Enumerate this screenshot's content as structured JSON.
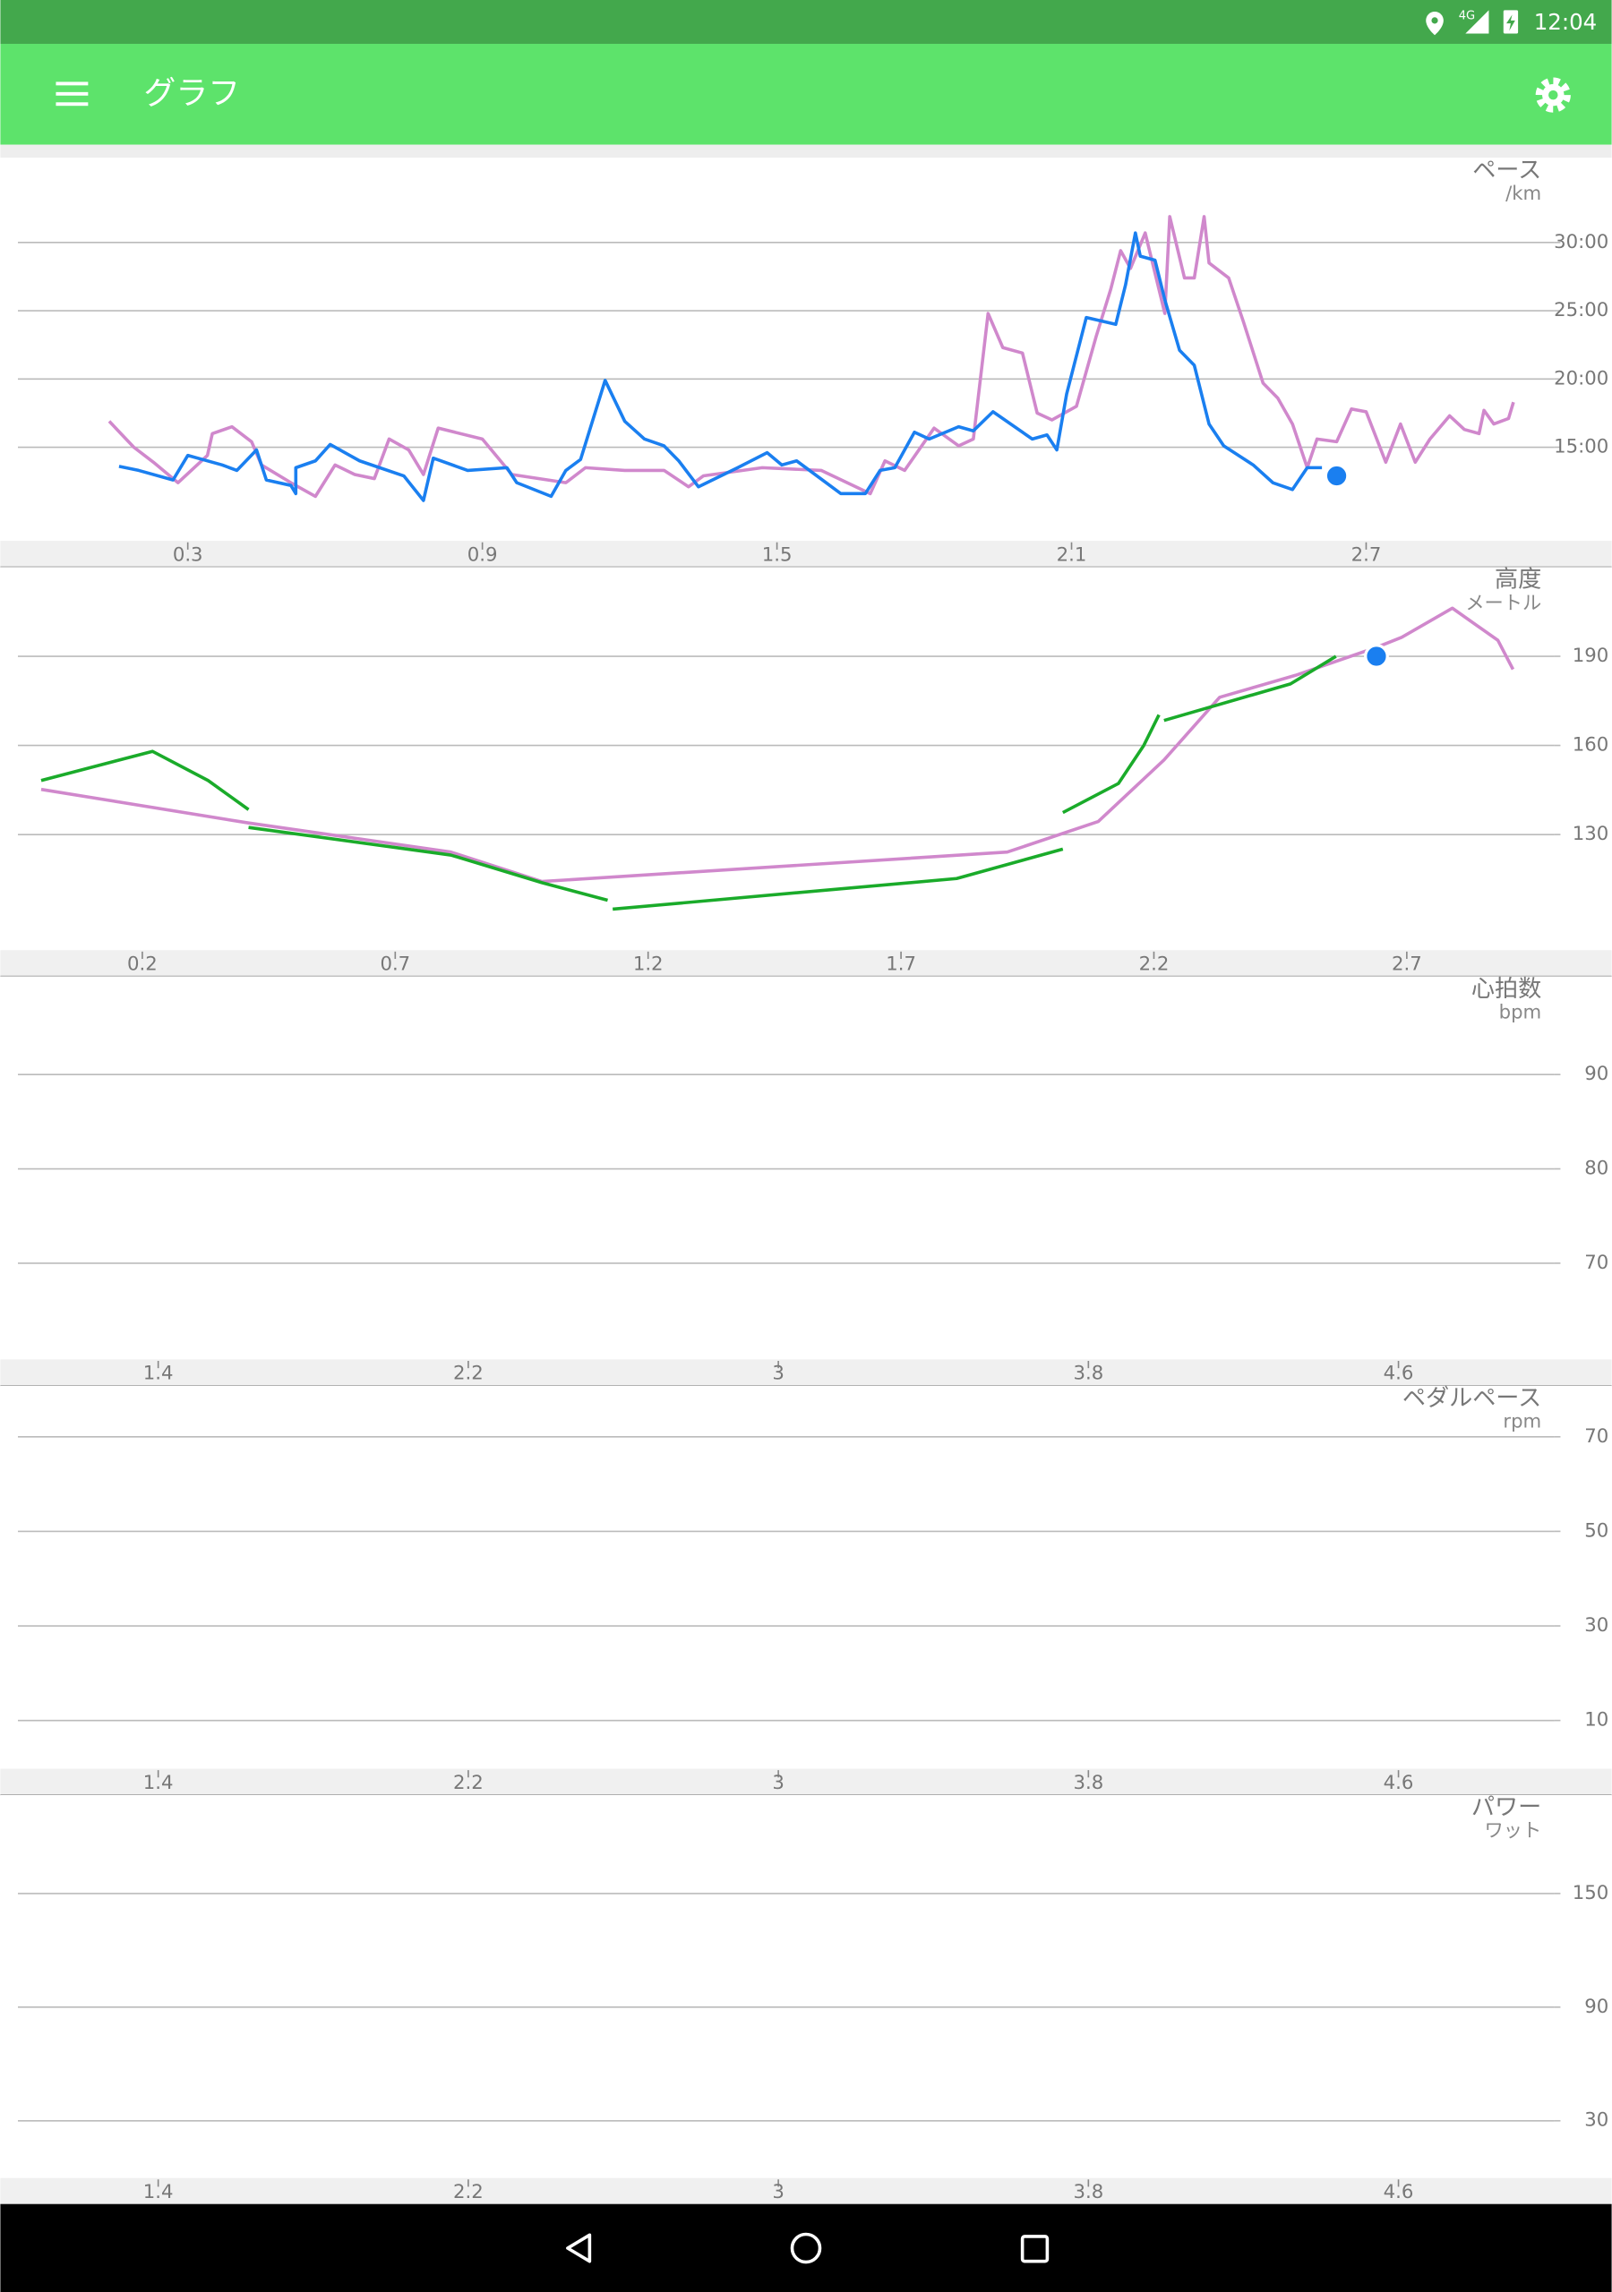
{
  "status_bar": {
    "time": "12:04",
    "network": "4G"
  },
  "app_bar": {
    "title": "グラフ"
  },
  "chart_data": [
    {
      "type": "line",
      "title": "ペース",
      "unit": "/km",
      "grid": true,
      "xlim": [
        -0.046,
        3.2
      ],
      "xticks": [
        0.3,
        0.9,
        1.5,
        2.1,
        2.7
      ],
      "ylim": [
        8.14,
        36.2
      ],
      "yticks": [
        {
          "value": 15,
          "label": "15:00"
        },
        {
          "value": 20,
          "label": "20:00"
        },
        {
          "value": 25,
          "label": "25:00"
        },
        {
          "value": 30,
          "label": "30:00"
        }
      ],
      "series": [
        {
          "color": "#d088cc",
          "x": [
            0.14,
            0.19,
            0.23,
            0.28,
            0.34,
            0.35,
            0.39,
            0.43,
            0.45,
            0.51,
            0.56,
            0.6,
            0.64,
            0.68,
            0.71,
            0.75,
            0.78,
            0.81,
            0.9,
            0.96,
            1.07,
            1.11,
            1.19,
            1.27,
            1.32,
            1.35,
            1.47,
            1.59,
            1.69,
            1.72,
            1.76,
            1.82,
            1.87,
            1.9,
            1.93,
            1.96,
            2.0,
            2.03,
            2.06,
            2.11,
            2.15,
            2.18,
            2.2,
            2.22,
            2.25,
            2.29,
            2.3,
            2.33,
            2.35,
            2.37,
            2.38,
            2.42,
            2.45,
            2.49,
            2.52,
            2.55,
            2.58,
            2.6,
            2.64,
            2.67,
            2.7,
            2.74,
            2.77,
            2.8,
            2.83,
            2.87,
            2.9,
            2.93,
            2.94,
            2.96,
            2.99,
            3.0
          ],
          "values": [
            16.9,
            15.0,
            13.9,
            12.4,
            14.4,
            16.0,
            16.5,
            15.4,
            13.7,
            12.4,
            11.4,
            13.7,
            13.0,
            12.7,
            15.6,
            14.8,
            13.0,
            16.4,
            15.6,
            13.0,
            12.4,
            13.5,
            13.3,
            13.3,
            12.1,
            12.9,
            13.5,
            13.3,
            11.6,
            14.0,
            13.3,
            16.4,
            15.1,
            15.6,
            24.8,
            22.3,
            21.9,
            17.5,
            17.0,
            18.0,
            23.1,
            26.6,
            29.4,
            28.1,
            30.7,
            24.8,
            31.9,
            27.4,
            27.4,
            31.9,
            28.5,
            27.4,
            24.2,
            19.7,
            18.6,
            16.7,
            13.5,
            15.6,
            15.4,
            17.8,
            17.6,
            13.9,
            16.7,
            13.9,
            15.6,
            17.3,
            16.3,
            16.0,
            17.7,
            16.7,
            17.1,
            18.3
          ]
        },
        {
          "color": "#1a7ff0",
          "x": [
            0.16,
            0.2,
            0.27,
            0.3,
            0.37,
            0.4,
            0.44,
            0.46,
            0.51,
            0.52,
            0.52,
            0.56,
            0.59,
            0.65,
            0.74,
            0.78,
            0.8,
            0.87,
            0.95,
            0.97,
            1.04,
            1.07,
            1.1,
            1.15,
            1.19,
            1.23,
            1.27,
            1.3,
            1.34,
            1.42,
            1.48,
            1.51,
            1.54,
            1.63,
            1.68,
            1.71,
            1.74,
            1.78,
            1.81,
            1.87,
            1.9,
            1.94,
            2.02,
            2.05,
            2.07,
            2.09,
            2.13,
            2.19,
            2.21,
            2.23,
            2.24,
            2.27,
            2.29,
            2.32,
            2.35,
            2.38,
            2.41,
            2.47,
            2.51,
            2.55,
            2.58,
            2.61
          ],
          "values": [
            13.6,
            13.3,
            12.6,
            14.4,
            13.7,
            13.3,
            14.8,
            12.6,
            12.2,
            11.6,
            13.5,
            14.0,
            15.2,
            14.0,
            12.9,
            11.1,
            14.2,
            13.3,
            13.5,
            12.4,
            11.4,
            13.3,
            14.1,
            19.9,
            16.9,
            15.6,
            15.1,
            14.0,
            12.1,
            13.5,
            14.6,
            13.7,
            14.0,
            11.6,
            11.6,
            13.3,
            13.5,
            16.1,
            15.6,
            16.5,
            16.2,
            17.6,
            15.6,
            15.9,
            14.8,
            18.9,
            24.5,
            24.0,
            26.9,
            30.7,
            29.0,
            28.7,
            25.8,
            22.1,
            21.0,
            16.7,
            15.1,
            13.7,
            12.4,
            11.9,
            13.5,
            13.5
          ]
        }
      ],
      "marker": {
        "x": 2.64,
        "y": 12.9,
        "color": "#1a7ff0"
      }
    },
    {
      "type": "line",
      "title": "高度",
      "unit": "メートル",
      "grid": true,
      "xlim": [
        -0.046,
        3.105
      ],
      "xticks": [
        0.2,
        0.7,
        1.2,
        1.7,
        2.2,
        2.7
      ],
      "ylim": [
        91.1,
        220
      ],
      "yticks": [
        130,
        160,
        190
      ],
      "series": [
        {
          "color": "#d088cc",
          "x": [
            0.0,
            0.41,
            0.81,
            0.99,
            1.91,
            2.09,
            2.22,
            2.33,
            2.48,
            2.64,
            2.69,
            2.79,
            2.88,
            2.91
          ],
          "values": [
            145.2,
            133.9,
            124.1,
            114.2,
            124.1,
            134.4,
            155.1,
            176.2,
            183.6,
            193.0,
            196.4,
            206.2,
            195.4,
            185.6
          ]
        },
        {
          "color": "#1aab2a",
          "x": [
            0.0,
            0.22,
            0.33,
            0.41,
            null,
            0.41,
            0.81,
            0.99,
            1.12,
            null,
            1.13,
            1.81,
            2.02,
            null,
            2.02,
            2.13,
            2.18,
            2.21,
            null,
            2.22,
            2.47,
            2.56
          ],
          "values": [
            148.2,
            158.0,
            148.2,
            138.4,
            null,
            132.4,
            123.1,
            113.8,
            107.9,
            null,
            104.9,
            115.2,
            125.1,
            null,
            137.4,
            147.2,
            160.0,
            170.3,
            null,
            168.4,
            180.7,
            190.0
          ]
        }
      ],
      "marker": {
        "x": 2.64,
        "y": 190,
        "color": "#1a7ff0"
      }
    },
    {
      "type": "line",
      "title": "心拍数",
      "unit": "bpm",
      "grid": true,
      "xlim": [
        1.038,
        5.15
      ],
      "xticks": [
        1.4,
        2.2,
        3.0,
        3.8,
        4.6
      ],
      "ylim": [
        59.8,
        100.4
      ],
      "yticks": [
        70,
        80,
        90
      ],
      "series": []
    },
    {
      "type": "line",
      "title": "ペダルペース",
      "unit": "rpm",
      "grid": true,
      "xlim": [
        1.038,
        5.15
      ],
      "xticks": [
        1.4,
        2.2,
        3.0,
        3.8,
        4.6
      ],
      "ylim": [
        -0.2,
        80.8
      ],
      "yticks": [
        10,
        30,
        50,
        70
      ],
      "series": []
    },
    {
      "type": "line",
      "title": "パワー",
      "unit": "ワット",
      "grid": true,
      "xlim": [
        1.038,
        5.15
      ],
      "xticks": [
        1.4,
        2.2,
        3.0,
        3.8,
        4.6
      ],
      "ylim": [
        -0.2,
        202
      ],
      "yticks": [
        30,
        90,
        150
      ],
      "series": []
    }
  ]
}
